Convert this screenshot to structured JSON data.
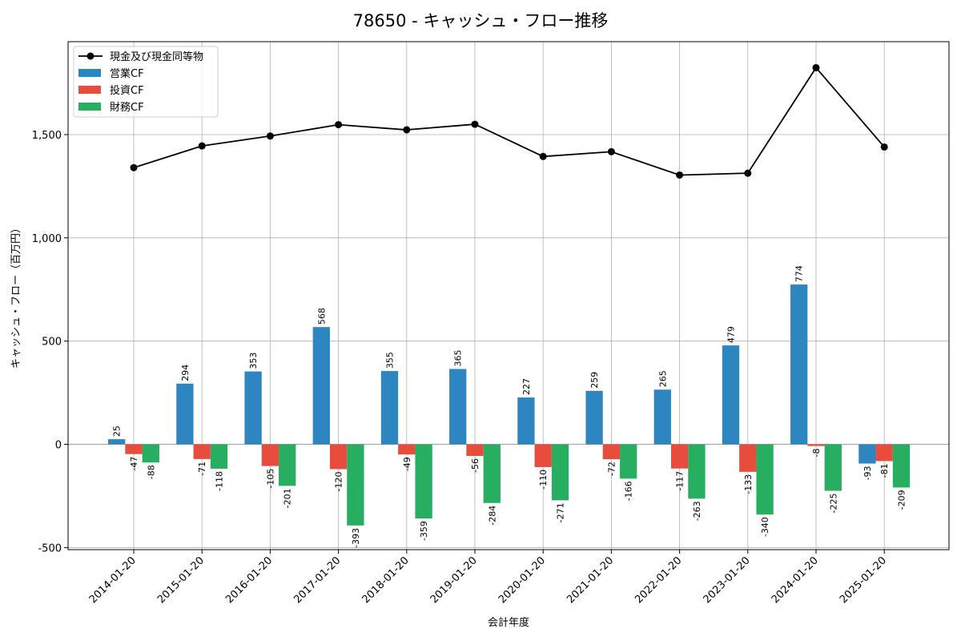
{
  "chart_data": {
    "type": "bar",
    "title": "78650 - キャッシュ・フロー推移",
    "xlabel": "会計年度",
    "ylabel": "キャッシュ・フロー（百万円）",
    "ylim": [
      -510,
      1950
    ],
    "yticks": [
      -500,
      0,
      500,
      1000,
      1500
    ],
    "ytick_labels": [
      "-500",
      "0",
      "500",
      "1,000",
      "1,500"
    ],
    "grid": true,
    "legend_position": "top-left",
    "categories": [
      "2014-01-20",
      "2015-01-20",
      "2016-01-20",
      "2017-01-20",
      "2018-01-20",
      "2019-01-20",
      "2020-01-20",
      "2021-01-20",
      "2022-01-20",
      "2023-01-20",
      "2024-01-20",
      "2025-01-20"
    ],
    "series": [
      {
        "name": "営業CF",
        "kind": "bar",
        "color": "#2e86c1",
        "values": [
          25,
          294,
          353,
          568,
          355,
          365,
          227,
          259,
          265,
          479,
          774,
          -93
        ]
      },
      {
        "name": "投資CF",
        "kind": "bar",
        "color": "#e74c3c",
        "values": [
          -47,
          -71,
          -105,
          -120,
          -49,
          -56,
          -110,
          -72,
          -117,
          -133,
          -8,
          -81
        ]
      },
      {
        "name": "財務CF",
        "kind": "bar",
        "color": "#27ae60",
        "values": [
          -88,
          -118,
          -201,
          -393,
          -359,
          -284,
          -271,
          -166,
          -263,
          -340,
          -225,
          -209
        ]
      },
      {
        "name": "現金及び現金同等物",
        "kind": "line",
        "color": "#000000",
        "values": [
          1340,
          1445,
          1493,
          1548,
          1523,
          1550,
          1394,
          1417,
          1304,
          1313,
          1824,
          1440
        ]
      }
    ]
  }
}
